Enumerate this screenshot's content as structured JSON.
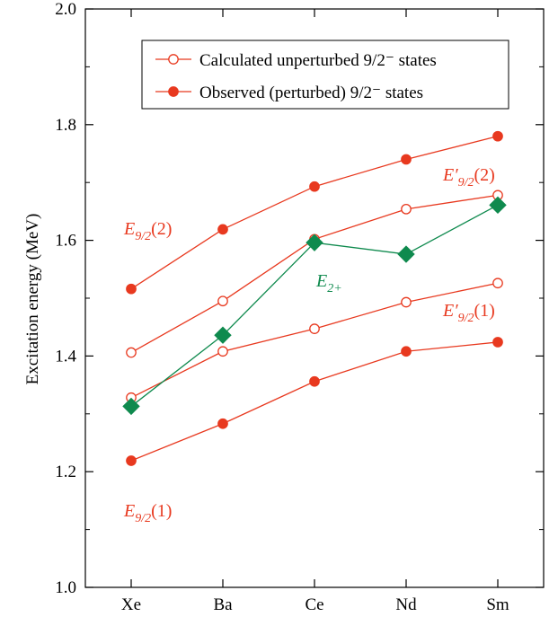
{
  "chart_data": {
    "type": "line",
    "title": "",
    "xlabel": "",
    "ylabel": "Excitation energy (MeV)",
    "categories": [
      "Xe",
      "Ba",
      "Ce",
      "Nd",
      "Sm"
    ],
    "ylim": [
      1.0,
      2.0
    ],
    "yticks": [
      "1.0",
      "1.2",
      "1.4",
      "1.6",
      "1.8",
      "2.0"
    ],
    "grid": false,
    "legend_position": "top-right",
    "colors": {
      "red": "#e8391f",
      "green": "#0f8a4e"
    },
    "legend": [
      {
        "label": "Calculated unperturbed 9/2⁻ states",
        "marker": "open-circle"
      },
      {
        "label": "Observed (perturbed) 9/2⁻ states",
        "marker": "filled-circle"
      }
    ],
    "series": [
      {
        "style": "open-circle",
        "values": [
          1.406,
          1.495,
          1.602,
          1.654,
          1.678
        ]
      },
      {
        "style": "open-circle",
        "values": [
          1.328,
          1.408,
          1.447,
          1.493,
          1.526
        ]
      },
      {
        "style": "filled-circle",
        "values": [
          1.516,
          1.619,
          1.693,
          1.74,
          1.78
        ]
      },
      {
        "style": "filled-circle",
        "values": [
          1.219,
          1.283,
          1.356,
          1.408,
          1.424
        ]
      },
      {
        "style": "diamond",
        "values": [
          1.313,
          1.436,
          1.596,
          1.576,
          1.661
        ]
      }
    ],
    "annotations": {
      "e92_2": {
        "base": "E",
        "sub": "9/2",
        "paren": "(2)"
      },
      "e92_1": {
        "base": "E",
        "sub": "9/2",
        "paren": "(1)"
      },
      "ep92_2": {
        "base": "E′",
        "sub": "9/2",
        "paren": "(2)"
      },
      "ep92_1": {
        "base": "E′",
        "sub": "9/2",
        "paren": "(1)"
      },
      "e2plus": {
        "base": "E",
        "sub": "2+"
      }
    }
  }
}
